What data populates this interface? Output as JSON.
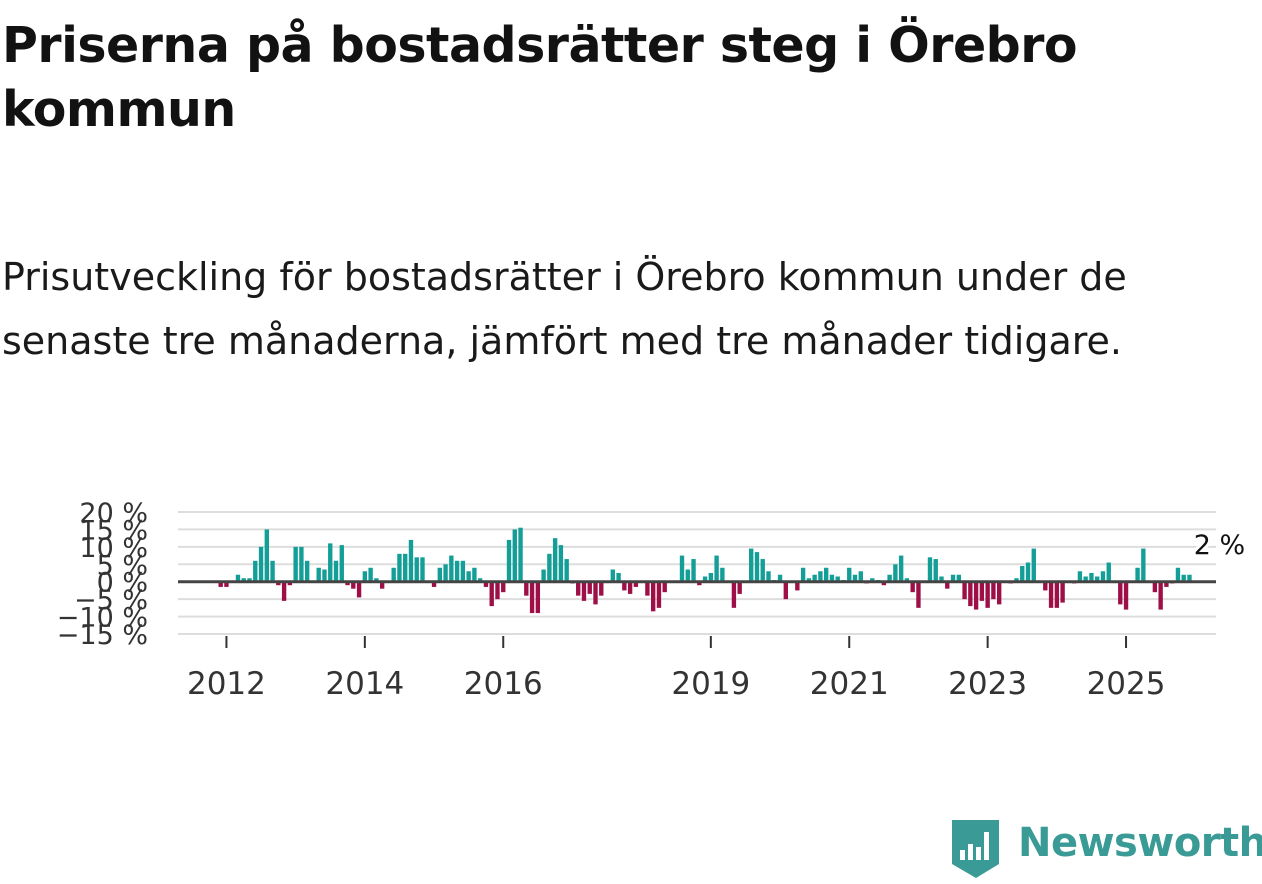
{
  "title": "Priserna på bostadsrätter steg i Örebro kommun",
  "subtitle": "Prisutveckling för bostadsrätter i Örebro kommun under de senaste tre månaderna, jämfört med tre månader tidigare.",
  "brand": {
    "name": "Newsworthy",
    "icon": "newsworthy-logo-icon"
  },
  "colors": {
    "positive": "#139e97",
    "negative": "#9e0f47",
    "grid": "#dddddd",
    "zero": "#444444",
    "brand": "#3a9a95"
  },
  "chart_data": {
    "type": "bar",
    "title": "Priserna på bostadsrätter steg i Örebro kommun",
    "xlabel": "",
    "ylabel": "",
    "unit": "%",
    "ylim": [
      -15,
      20
    ],
    "yticks": [
      20,
      15,
      10,
      5,
      0,
      -5,
      -10,
      -15
    ],
    "ytick_labels": [
      "20 %",
      "15 %",
      "10 %",
      "5 %",
      "0 %",
      "−5 %",
      "−10 %",
      "−15 %"
    ],
    "xlim": [
      2011.3,
      2026.3
    ],
    "xticks": [
      2012,
      2014,
      2016,
      2019,
      2021,
      2023,
      2025
    ],
    "xtick_labels": [
      "2012",
      "2014",
      "2016",
      "2019",
      "2021",
      "2023",
      "2025"
    ],
    "start": "2011-12",
    "frequency": "monthly",
    "values": [
      -1.5,
      -1.5,
      0,
      2,
      1,
      1,
      6,
      10,
      15,
      6,
      -1,
      -5.5,
      -1,
      10,
      10,
      6,
      0,
      4,
      3.5,
      11,
      6,
      10.5,
      -1,
      -2,
      -4.5,
      3,
      4,
      1,
      -2,
      0,
      4,
      8,
      8,
      12,
      7,
      7,
      0,
      -1.5,
      4,
      5,
      7.5,
      6,
      6,
      3,
      4,
      1,
      -1.5,
      -7,
      -5,
      -3,
      12,
      15,
      15.5,
      -4,
      -9,
      -9,
      3.5,
      8,
      12.5,
      10.5,
      6.5,
      -0.5,
      -4,
      -5.5,
      -3.5,
      -6.5,
      -4,
      0,
      3.5,
      2.5,
      -2.5,
      -3.5,
      -1.5,
      0,
      -4,
      -8.5,
      -7.5,
      -3,
      0,
      0,
      7.5,
      3.5,
      6.5,
      -1,
      1.5,
      2.5,
      7.5,
      4,
      0,
      -7.5,
      -3.5,
      0,
      9.5,
      8.5,
      6.5,
      3,
      0.5,
      2,
      -5,
      0,
      -2.5,
      4,
      1,
      2,
      3,
      4,
      2,
      1.5,
      0.5,
      4,
      2,
      3,
      -0.5,
      1,
      0.5,
      -1,
      2,
      5,
      7.5,
      1,
      -3,
      -7.5,
      0,
      7,
      6.5,
      1.5,
      -2,
      2,
      2,
      -5,
      -7,
      -8,
      -5.5,
      -7.5,
      -5,
      -6.5,
      0,
      -0.5,
      1,
      4.5,
      5.5,
      9.5,
      0,
      -2.5,
      -7.5,
      -7.5,
      -6,
      0,
      -0.5,
      3,
      1.5,
      2.5,
      1.5,
      3,
      5.5,
      0,
      -6.5,
      -8,
      0,
      4,
      9.5,
      0,
      -3,
      -8,
      -1.5,
      -0.5,
      4,
      2,
      2
    ],
    "annotation": {
      "label": "2 %",
      "value": 2
    }
  }
}
